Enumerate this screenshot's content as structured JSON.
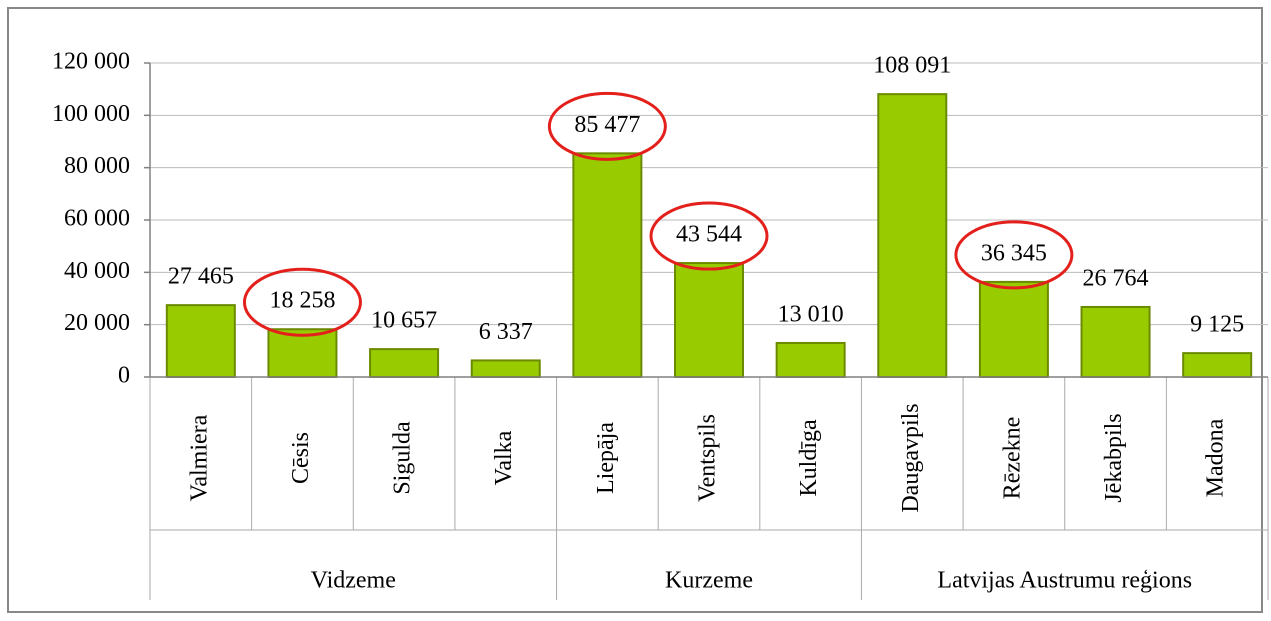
{
  "chart_data": {
    "type": "bar",
    "categories": [
      "Valmiera",
      "Cēsis",
      "Sigulda",
      "Valka",
      "Liepāja",
      "Ventspils",
      "Kuldīga",
      "Daugavpils",
      "Rēzekne",
      "Jēkabpils",
      "Madona"
    ],
    "groups": [
      "Vidzeme",
      "Vidzeme",
      "Vidzeme",
      "Vidzeme",
      "Kurzeme",
      "Kurzeme",
      "Kurzeme",
      "Latvijas Austrumu reģions",
      "Latvijas Austrumu reģions",
      "Latvijas Austrumu reģions",
      "Latvijas Austrumu reģions"
    ],
    "values": [
      27465,
      18258,
      10657,
      6337,
      85477,
      43544,
      13010,
      108091,
      36345,
      26764,
      9125
    ],
    "value_labels": [
      "27 465",
      "18 258",
      "10 657",
      "6 337",
      "85 477",
      "43 544",
      "13 010",
      "108 091",
      "36 345",
      "26 764",
      "9 125"
    ],
    "highlight": [
      false,
      true,
      false,
      false,
      true,
      true,
      false,
      false,
      true,
      false,
      false
    ],
    "highlight_color": "#e3201b",
    "color": "#99cc00",
    "ylim": [
      0,
      120000
    ],
    "yticks": [
      0,
      {
        "value": 20000,
        "label": "20 000"
      },
      {
        "value": 40000,
        "label": "40 000"
      },
      {
        "value": 60000,
        "label": "60 000"
      },
      {
        "value": 80000,
        "label": "80 000"
      },
      {
        "value": 100000,
        "label": "100 000"
      },
      {
        "value": 120000,
        "label": "120 000"
      }
    ],
    "grid": true
  }
}
